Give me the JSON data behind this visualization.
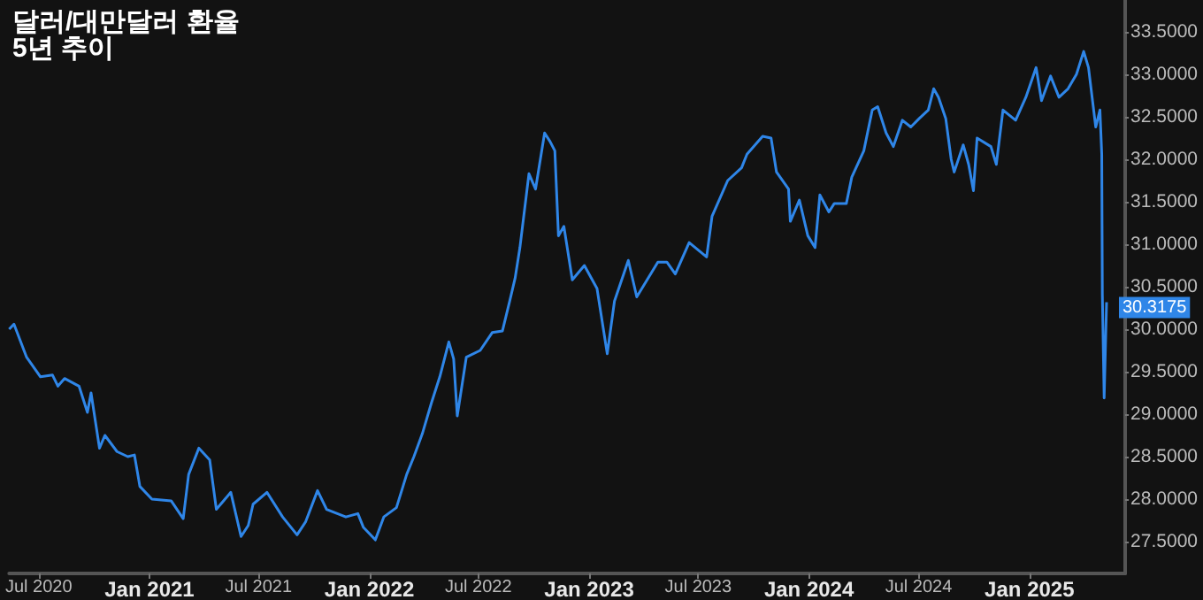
{
  "chart_data": {
    "type": "line",
    "title": "달러/대만달러 환율",
    "subtitle": "5년 추이",
    "x": [
      "2020-05-13",
      "2020-05-21",
      "2020-06-11",
      "2020-07-04",
      "2020-07-24",
      "2020-08-02",
      "2020-08-13",
      "2020-09-06",
      "2020-09-20",
      "2020-09-26",
      "2020-10-10",
      "2020-10-19",
      "2020-11-08",
      "2020-11-26",
      "2020-12-07",
      "2020-12-16",
      "2021-01-05",
      "2021-02-06",
      "2021-02-26",
      "2021-03-07",
      "2021-03-24",
      "2021-04-11",
      "2021-04-22",
      "2021-05-16",
      "2021-06-02",
      "2021-06-14",
      "2021-06-22",
      "2021-07-15",
      "2021-08-10",
      "2021-09-03",
      "2021-09-17",
      "2021-10-07",
      "2021-10-22",
      "2021-11-23",
      "2021-12-13",
      "2021-12-22",
      "2022-01-11",
      "2022-01-25",
      "2022-02-15",
      "2022-03-04",
      "2022-03-16",
      "2022-03-30",
      "2022-04-14",
      "2022-04-28",
      "2022-05-13",
      "2022-05-21",
      "2022-05-27",
      "2022-06-11",
      "2022-07-04",
      "2022-07-24",
      "2022-08-10",
      "2022-08-22",
      "2022-08-31",
      "2022-09-08",
      "2022-09-23",
      "2022-10-04",
      "2022-10-19",
      "2022-10-28",
      "2022-11-05",
      "2022-11-11",
      "2022-11-20",
      "2022-12-04",
      "2022-12-24",
      "2023-01-14",
      "2023-01-31",
      "2023-02-12",
      "2023-03-07",
      "2023-03-21",
      "2023-04-25",
      "2023-05-10",
      "2023-05-24",
      "2023-06-16",
      "2023-07-15",
      "2023-07-24",
      "2023-08-19",
      "2023-09-11",
      "2023-09-20",
      "2023-10-16",
      "2023-10-30",
      "2023-11-08",
      "2023-11-28",
      "2023-12-01",
      "2023-12-16",
      "2023-12-30",
      "2024-01-11",
      "2024-01-19",
      "2024-02-03",
      "2024-02-12",
      "2024-03-03",
      "2024-03-12",
      "2024-04-01",
      "2024-04-15",
      "2024-04-24",
      "2024-05-08",
      "2024-05-20",
      "2024-06-04",
      "2024-06-18",
      "2024-07-02",
      "2024-07-17",
      "2024-07-26",
      "2024-08-03",
      "2024-08-15",
      "2024-08-24",
      "2024-08-29",
      "2024-09-13",
      "2024-09-22",
      "2024-09-30",
      "2024-10-06",
      "2024-10-29",
      "2024-11-07",
      "2024-11-18",
      "2024-12-09",
      "2024-12-26",
      "2025-01-12",
      "2025-01-21",
      "2025-02-05",
      "2025-02-19",
      "2025-03-06",
      "2025-03-20",
      "2025-04-01",
      "2025-04-09",
      "2025-04-21",
      "2025-04-28",
      "2025-05-01",
      "2025-05-02",
      "2025-05-05",
      "2025-05-09"
    ],
    "series": [
      {
        "color": "#2f86e8",
        "values": [
          30.0,
          30.06,
          29.67,
          29.44,
          29.46,
          29.33,
          29.42,
          29.33,
          29.02,
          29.25,
          28.6,
          28.75,
          28.56,
          28.5,
          28.52,
          28.15,
          28.0,
          27.98,
          27.77,
          28.29,
          28.6,
          28.46,
          27.88,
          28.08,
          27.56,
          27.69,
          27.94,
          28.08,
          27.79,
          27.58,
          27.73,
          28.1,
          27.88,
          27.79,
          27.83,
          27.67,
          27.52,
          27.79,
          27.9,
          28.29,
          28.5,
          28.77,
          29.13,
          29.44,
          29.85,
          29.65,
          28.98,
          29.67,
          29.75,
          29.96,
          29.98,
          30.33,
          30.6,
          30.96,
          31.83,
          31.65,
          32.31,
          32.21,
          32.1,
          31.1,
          31.21,
          30.58,
          30.75,
          30.48,
          29.71,
          30.33,
          30.81,
          30.38,
          30.79,
          30.79,
          30.65,
          31.02,
          30.85,
          31.33,
          31.75,
          31.9,
          32.06,
          32.27,
          32.25,
          31.85,
          31.65,
          31.27,
          31.52,
          31.1,
          30.96,
          31.58,
          31.38,
          31.48,
          31.48,
          31.79,
          32.1,
          32.58,
          32.62,
          32.31,
          32.15,
          32.46,
          32.38,
          32.48,
          32.58,
          32.83,
          32.73,
          32.48,
          32.0,
          31.85,
          32.17,
          31.94,
          31.63,
          32.25,
          32.15,
          31.94,
          32.58,
          32.46,
          32.73,
          33.08,
          32.69,
          32.98,
          32.73,
          32.83,
          33.0,
          33.27,
          33.08,
          32.38,
          32.58,
          32.06,
          30.4,
          29.19,
          30.3175
        ],
        "value_labels": [
          null,
          null,
          null,
          null,
          null,
          null,
          null,
          null,
          null,
          null,
          null,
          null,
          null,
          null,
          null,
          null,
          null,
          null,
          null,
          null,
          null,
          null,
          null,
          null,
          null,
          null,
          null,
          null,
          null,
          null,
          null,
          null,
          null,
          null,
          null,
          null,
          null,
          null,
          null,
          null,
          null,
          null,
          null,
          null,
          null,
          null,
          null,
          null,
          null,
          null,
          null,
          null,
          null,
          null,
          null,
          null,
          null,
          null,
          null,
          null,
          null,
          null,
          null,
          null,
          null,
          null,
          null,
          null,
          null,
          null,
          null,
          null,
          null,
          null,
          null,
          null,
          null,
          null,
          null,
          null,
          null,
          null,
          null,
          null,
          null,
          null,
          null,
          null,
          null,
          null,
          null,
          null,
          null,
          null,
          null,
          null,
          null,
          null,
          null,
          null,
          null,
          null,
          null,
          null,
          null,
          null,
          null,
          null,
          null,
          null,
          null,
          null,
          null,
          null,
          null,
          null,
          null,
          null,
          null,
          null,
          null,
          null,
          null,
          null,
          null,
          null,
          "30.3175"
        ]
      }
    ],
    "xlim": [
      "2020-05-13",
      "2025-06-09"
    ],
    "xticks": [
      {
        "value": "2020-07-01",
        "label": "Jul 2020"
      },
      {
        "value": "2021-01-01",
        "label": "Jan 2021"
      },
      {
        "value": "2021-07-01",
        "label": "Jul 2021"
      },
      {
        "value": "2022-01-01",
        "label": "Jan 2022"
      },
      {
        "value": "2022-07-01",
        "label": "Jul 2022"
      },
      {
        "value": "2023-01-01",
        "label": "Jan 2023"
      },
      {
        "value": "2023-07-01",
        "label": "Jul 2023"
      },
      {
        "value": "2024-01-01",
        "label": "Jan 2024"
      },
      {
        "value": "2024-07-01",
        "label": "Jul 2024"
      },
      {
        "value": "2025-01-01",
        "label": "Jan 2025"
      }
    ],
    "ylim": [
      27.125,
      33.875
    ],
    "yticks": [
      {
        "value": 27.5,
        "label": "27.5000"
      },
      {
        "value": 28,
        "label": "28.0000"
      },
      {
        "value": 28.5,
        "label": "28.5000"
      },
      {
        "value": 29,
        "label": "29.0000"
      },
      {
        "value": 29.5,
        "label": "29.5000"
      },
      {
        "value": 30,
        "label": "30.0000"
      },
      {
        "value": 30.5,
        "label": "30.5000"
      },
      {
        "value": 31,
        "label": "31.0000"
      },
      {
        "value": 31.5,
        "label": "31.5000"
      },
      {
        "value": 32,
        "label": "32.0000"
      },
      {
        "value": 32.5,
        "label": "32.5000"
      },
      {
        "value": 33,
        "label": "33.0000"
      },
      {
        "value": 33.5,
        "label": "33.5000"
      }
    ],
    "grid": false
  }
}
